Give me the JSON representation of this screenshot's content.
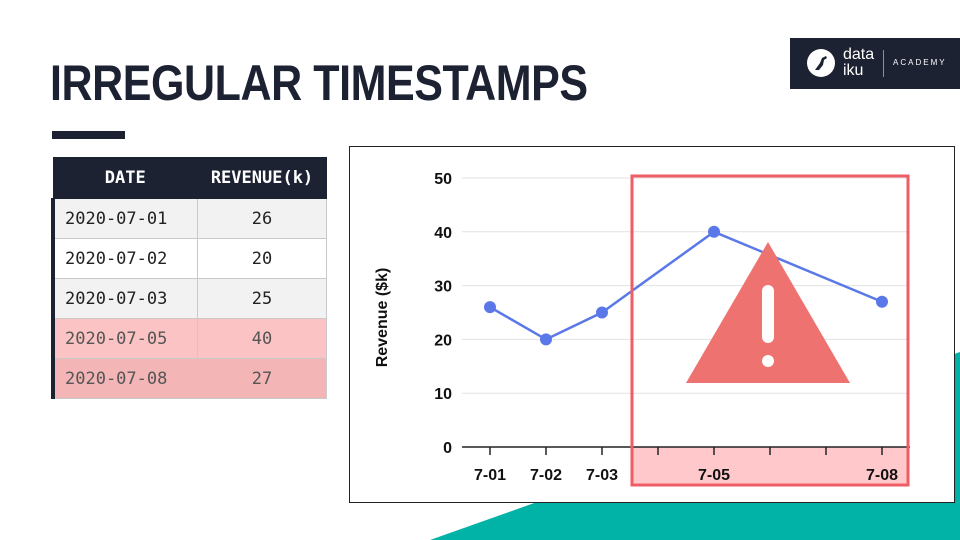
{
  "slide": {
    "title": "IRREGULAR TIMESTAMPS"
  },
  "logo": {
    "name_line1": "data",
    "name_line2": "iku",
    "tagline": "ACADEMY"
  },
  "table": {
    "headers": [
      "DATE",
      "REVENUE(k)"
    ],
    "rows": [
      {
        "date": "2020-07-01",
        "revenue": "26",
        "highlighted": false
      },
      {
        "date": "2020-07-02",
        "revenue": "20",
        "highlighted": false
      },
      {
        "date": "2020-07-03",
        "revenue": "25",
        "highlighted": false
      },
      {
        "date": "2020-07-05",
        "revenue": "40",
        "highlighted": true
      },
      {
        "date": "2020-07-08",
        "revenue": "27",
        "highlighted": true
      }
    ]
  },
  "chart_data": {
    "type": "line",
    "x": [
      "7-01",
      "7-02",
      "7-03",
      "7-05",
      "7-08"
    ],
    "x_day_positions": [
      1,
      2,
      3,
      5,
      8
    ],
    "values": [
      26,
      20,
      25,
      40,
      27
    ],
    "ylabel": "Revenue ($k)",
    "ylim": [
      0,
      50
    ],
    "yticks": [
      0,
      10,
      20,
      30,
      40,
      50
    ],
    "grid": true,
    "line_color": "#5b78e8",
    "highlight_color": "#ef5d66",
    "warning_color": "#ee7270",
    "highlighted_range": [
      "7-04",
      "7-08"
    ]
  },
  "colors": {
    "navy": "#1d2233",
    "teal": "#00b3a6",
    "pink_row": "#fbc3c3"
  }
}
